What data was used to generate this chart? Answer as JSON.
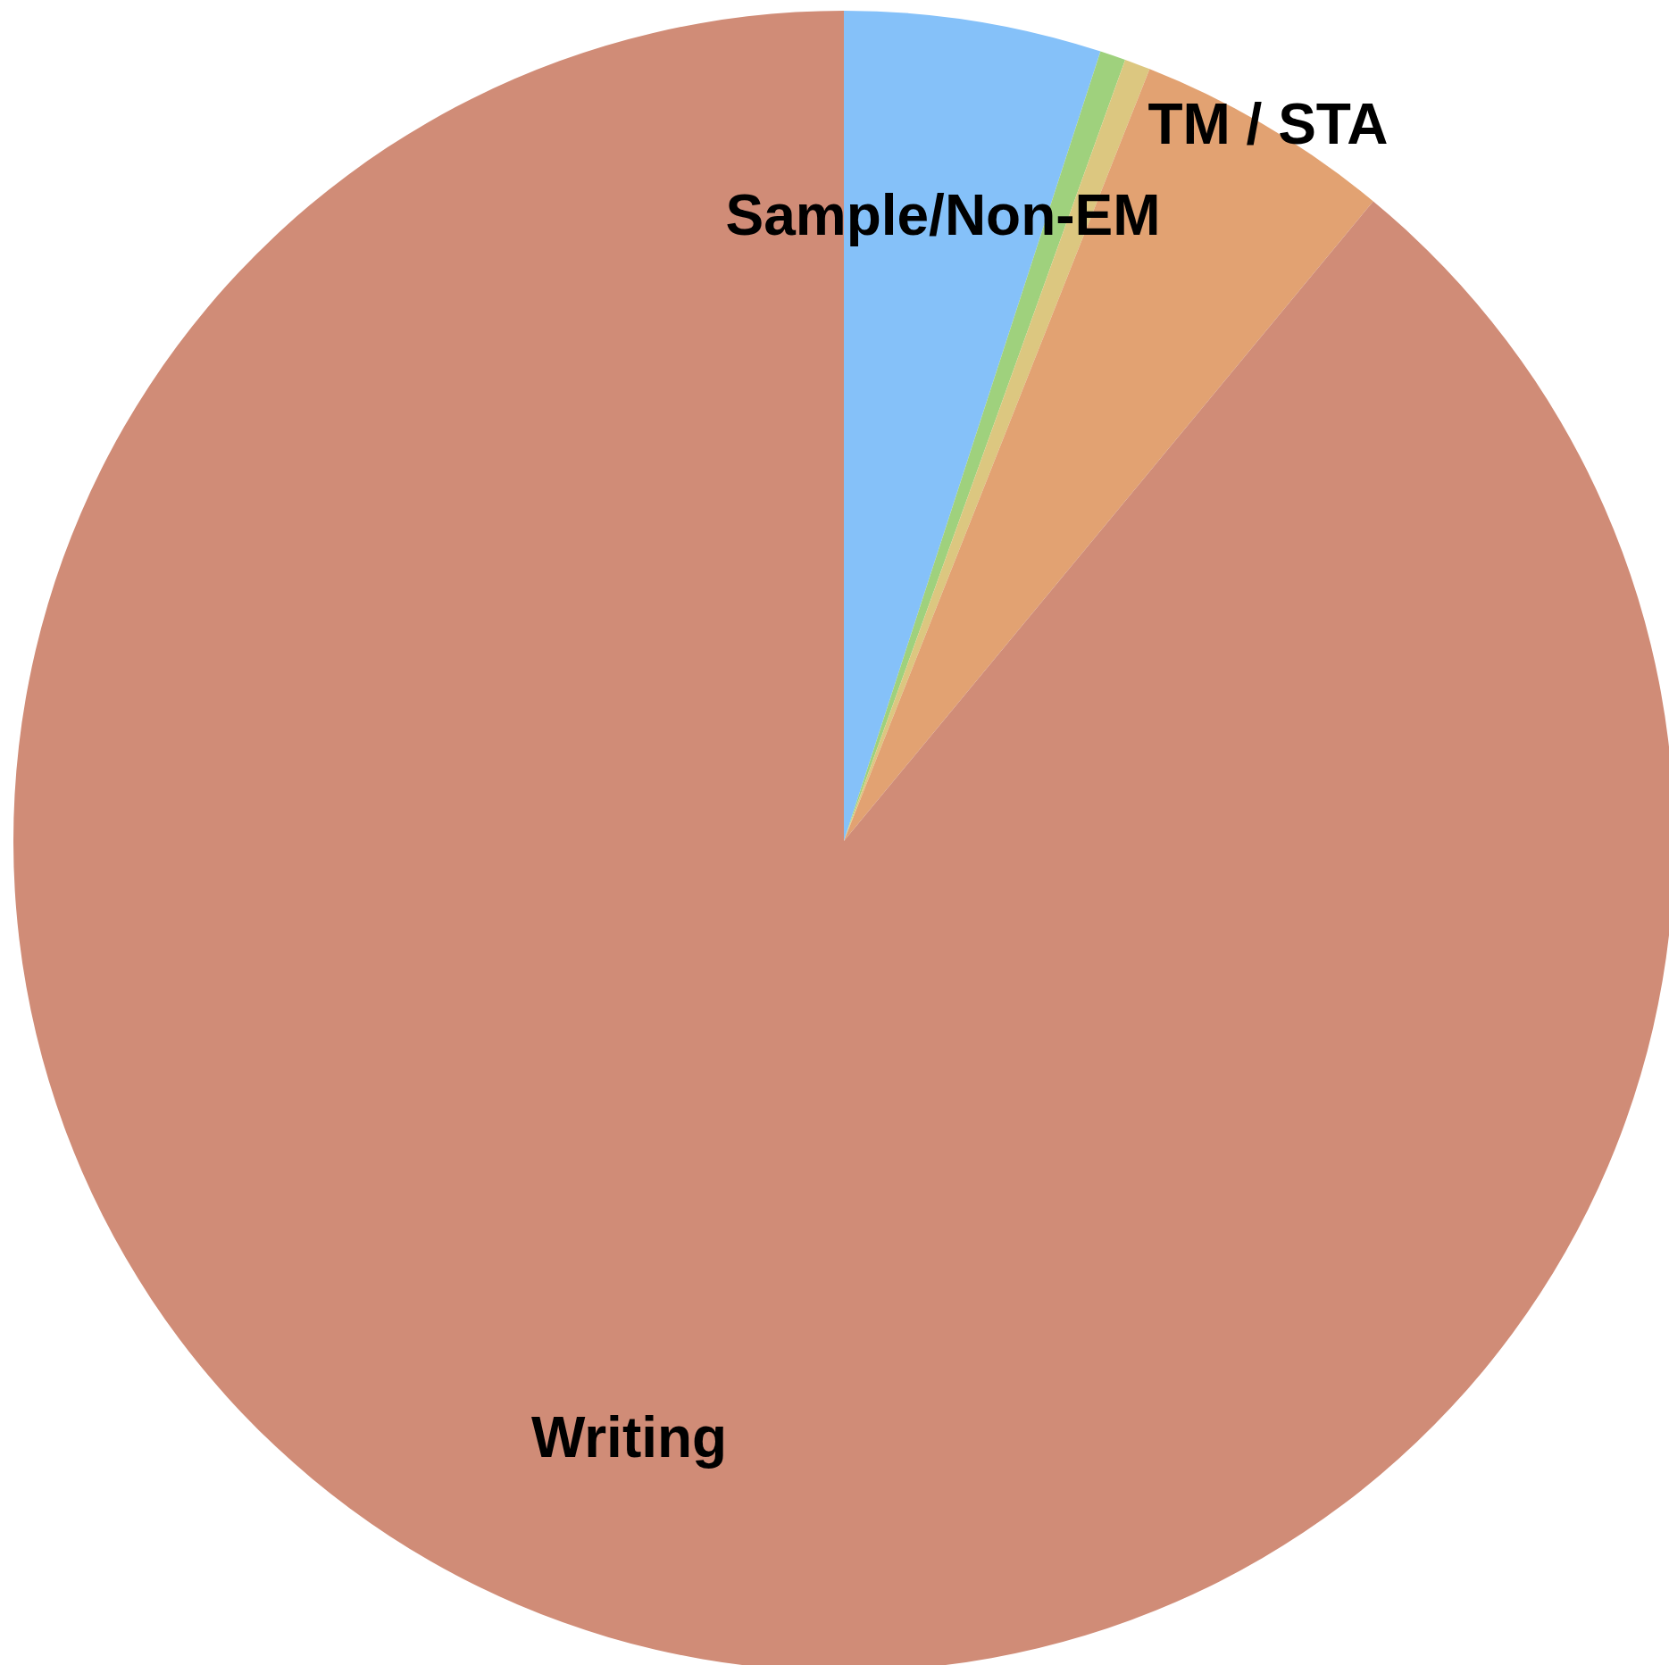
{
  "chart_data": {
    "type": "pie",
    "categories": [
      "Sample/Non-EM",
      null,
      null,
      "TM / STA",
      "Writing"
    ],
    "values": [
      5.0,
      0.5,
      0.5,
      5.0,
      89.0
    ],
    "colors": [
      "#85c1f9",
      "#9fd17d",
      "#dcc780",
      "#e2a272",
      "#d08c77"
    ],
    "legend": false
  }
}
